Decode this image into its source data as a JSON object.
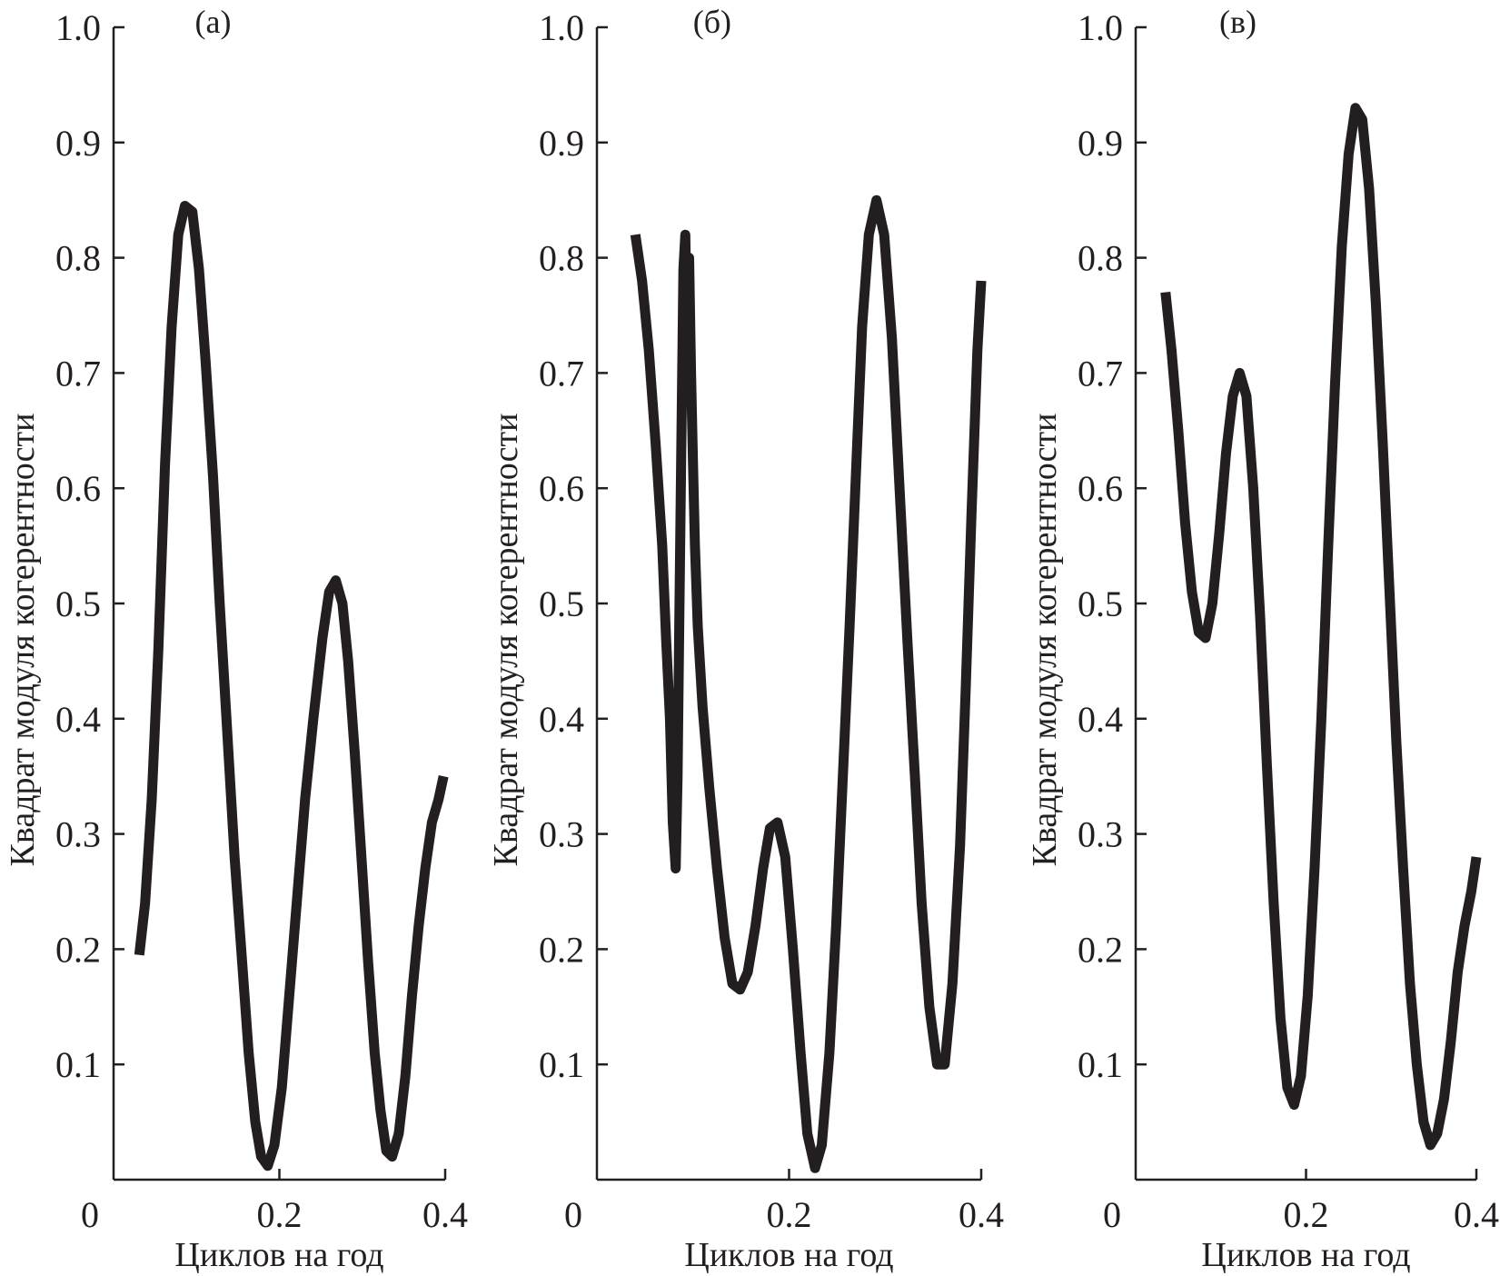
{
  "figure": {
    "line_color": "#231f20",
    "background": "#ffffff"
  },
  "chart_data": [
    {
      "type": "line",
      "panel_label": "(а)",
      "xlabel": "Циклов на год",
      "ylabel": "Квадрат модуля когерентности",
      "xlim": [
        0,
        0.4
      ],
      "ylim": [
        0,
        1.0
      ],
      "x_ticks": [
        0,
        0.2,
        0.4
      ],
      "x_tick_labels": [
        "0",
        "0.2",
        "0.4"
      ],
      "y_ticks": [
        0.1,
        0.2,
        0.3,
        0.4,
        0.5,
        0.6,
        0.7,
        0.8,
        0.9,
        1.0
      ],
      "y_tick_labels": [
        "0.1",
        "0.2",
        "0.3",
        "0.4",
        "0.5",
        "0.6",
        "0.7",
        "0.8",
        "0.9",
        "1.0"
      ],
      "grid": false,
      "series": [
        {
          "x": [
            0.031,
            0.038,
            0.046,
            0.054,
            0.062,
            0.07,
            0.078,
            0.086,
            0.095,
            0.103,
            0.111,
            0.12,
            0.128,
            0.137,
            0.146,
            0.155,
            0.163,
            0.171,
            0.178,
            0.186,
            0.194,
            0.203,
            0.212,
            0.222,
            0.231,
            0.241,
            0.252,
            0.26,
            0.268,
            0.276,
            0.283,
            0.291,
            0.299,
            0.307,
            0.315,
            0.322,
            0.329,
            0.336,
            0.344,
            0.352,
            0.36,
            0.368,
            0.376,
            0.384,
            0.392,
            0.398
          ],
          "y": [
            0.195,
            0.24,
            0.33,
            0.46,
            0.62,
            0.74,
            0.82,
            0.845,
            0.84,
            0.79,
            0.71,
            0.61,
            0.5,
            0.39,
            0.28,
            0.19,
            0.11,
            0.05,
            0.02,
            0.012,
            0.03,
            0.08,
            0.16,
            0.25,
            0.33,
            0.4,
            0.47,
            0.51,
            0.52,
            0.5,
            0.45,
            0.37,
            0.28,
            0.19,
            0.11,
            0.06,
            0.025,
            0.02,
            0.04,
            0.09,
            0.16,
            0.22,
            0.27,
            0.31,
            0.33,
            0.35
          ]
        }
      ]
    },
    {
      "type": "line",
      "panel_label": "(б)",
      "xlabel": "Циклов на год",
      "ylabel": "Квадрат модуля когерентности",
      "xlim": [
        0,
        0.4
      ],
      "ylim": [
        0,
        1.0
      ],
      "x_ticks": [
        0,
        0.2,
        0.4
      ],
      "x_tick_labels": [
        "0",
        "0.2",
        "0.4"
      ],
      "y_ticks": [
        0.1,
        0.2,
        0.3,
        0.4,
        0.5,
        0.6,
        0.7,
        0.8,
        0.9,
        1.0
      ],
      "y_tick_labels": [
        "0.1",
        "0.2",
        "0.3",
        "0.4",
        "0.5",
        "0.6",
        "0.7",
        "0.8",
        "0.9",
        "1.0"
      ],
      "grid": false,
      "series": [
        {
          "x": [
            0.04,
            0.047,
            0.054,
            0.061,
            0.068,
            0.072,
            0.076,
            0.079,
            0.082,
            0.084,
            0.086,
            0.088,
            0.09,
            0.092,
            0.094,
            0.096,
            0.098,
            0.1,
            0.102,
            0.105,
            0.11,
            0.117,
            0.125,
            0.133,
            0.141,
            0.149,
            0.157,
            0.165,
            0.173,
            0.18,
            0.188,
            0.196,
            0.204,
            0.212,
            0.219,
            0.227,
            0.234,
            0.242,
            0.249,
            0.256,
            0.263,
            0.27,
            0.276,
            0.283,
            0.291,
            0.299,
            0.307,
            0.315,
            0.323,
            0.331,
            0.338,
            0.346,
            0.354,
            0.362,
            0.37,
            0.378,
            0.384,
            0.39,
            0.396,
            0.4
          ],
          "y": [
            0.82,
            0.78,
            0.72,
            0.64,
            0.55,
            0.47,
            0.4,
            0.31,
            0.27,
            0.35,
            0.5,
            0.65,
            0.79,
            0.82,
            0.72,
            0.8,
            0.7,
            0.62,
            0.55,
            0.48,
            0.41,
            0.34,
            0.27,
            0.21,
            0.17,
            0.165,
            0.18,
            0.22,
            0.27,
            0.305,
            0.31,
            0.28,
            0.2,
            0.11,
            0.04,
            0.01,
            0.03,
            0.11,
            0.22,
            0.35,
            0.48,
            0.62,
            0.74,
            0.82,
            0.85,
            0.82,
            0.73,
            0.6,
            0.47,
            0.35,
            0.24,
            0.15,
            0.1,
            0.1,
            0.17,
            0.29,
            0.43,
            0.58,
            0.72,
            0.78
          ]
        }
      ]
    },
    {
      "type": "line",
      "panel_label": "(в)",
      "xlabel": "Циклов на год",
      "ylabel": "Квадрат модуля когерентности",
      "xlim": [
        0,
        0.4
      ],
      "ylim": [
        0,
        1.0
      ],
      "x_ticks": [
        0,
        0.2,
        0.4
      ],
      "x_tick_labels": [
        "0",
        "0.2",
        "0.4"
      ],
      "y_ticks": [
        0.1,
        0.2,
        0.3,
        0.4,
        0.5,
        0.6,
        0.7,
        0.8,
        0.9,
        1.0
      ],
      "y_tick_labels": [
        "0.1",
        "0.2",
        "0.3",
        "0.4",
        "0.5",
        "0.6",
        "0.7",
        "0.8",
        "0.9",
        "1.0"
      ],
      "grid": false,
      "series": [
        {
          "x": [
            0.035,
            0.042,
            0.05,
            0.058,
            0.066,
            0.074,
            0.082,
            0.09,
            0.098,
            0.106,
            0.114,
            0.122,
            0.13,
            0.138,
            0.146,
            0.154,
            0.162,
            0.17,
            0.178,
            0.186,
            0.194,
            0.202,
            0.21,
            0.218,
            0.226,
            0.234,
            0.242,
            0.25,
            0.258,
            0.266,
            0.274,
            0.282,
            0.29,
            0.298,
            0.306,
            0.314,
            0.322,
            0.33,
            0.338,
            0.346,
            0.354,
            0.362,
            0.37,
            0.378,
            0.386,
            0.394,
            0.4
          ],
          "y": [
            0.77,
            0.72,
            0.65,
            0.57,
            0.51,
            0.475,
            0.47,
            0.5,
            0.56,
            0.63,
            0.68,
            0.7,
            0.68,
            0.6,
            0.49,
            0.36,
            0.24,
            0.14,
            0.08,
            0.065,
            0.09,
            0.16,
            0.27,
            0.4,
            0.55,
            0.69,
            0.81,
            0.89,
            0.93,
            0.92,
            0.86,
            0.76,
            0.64,
            0.51,
            0.38,
            0.27,
            0.17,
            0.1,
            0.05,
            0.03,
            0.04,
            0.07,
            0.12,
            0.18,
            0.22,
            0.25,
            0.28
          ]
        }
      ]
    }
  ]
}
